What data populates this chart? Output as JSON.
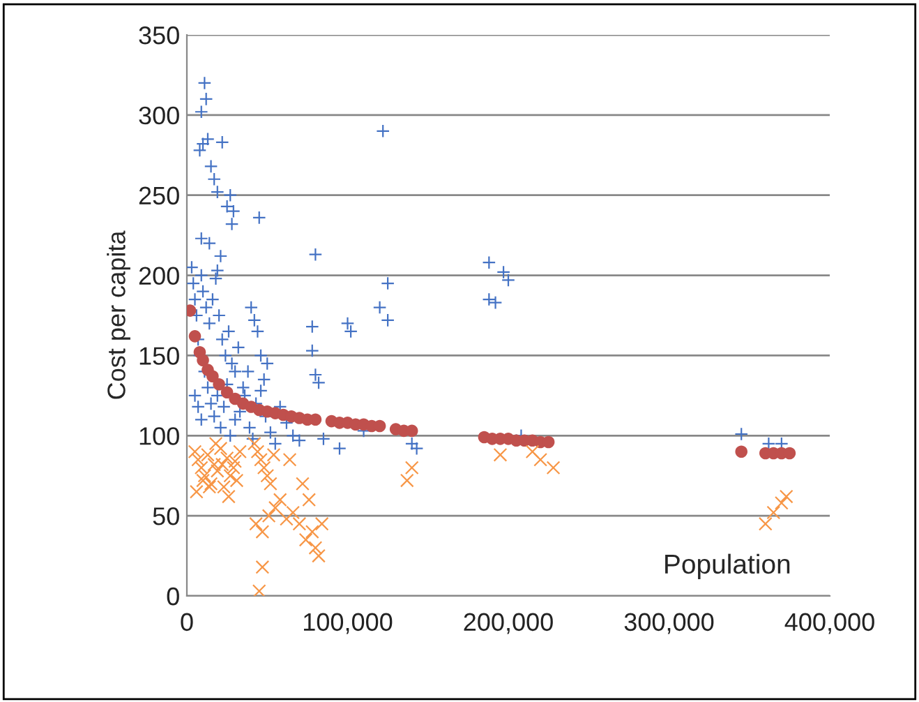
{
  "chart_data": {
    "type": "scatter",
    "xlabel": "Population",
    "ylabel": "Cost per capita",
    "xlim": [
      0,
      400000
    ],
    "ylim": [
      0,
      350
    ],
    "xticks": [
      {
        "value": 0,
        "label": "0"
      },
      {
        "value": 100000,
        "label": "100,000"
      },
      {
        "value": 200000,
        "label": "200,000"
      },
      {
        "value": 300000,
        "label": "300,000"
      },
      {
        "value": 400000,
        "label": "400,000"
      }
    ],
    "yticks": [
      0,
      50,
      100,
      150,
      200,
      250,
      300,
      350
    ],
    "grid": "y",
    "legend": false,
    "series": [
      {
        "color": "#4472c4",
        "marker": "plus",
        "x": [
          11000,
          12000,
          9000,
          13000,
          10000,
          8000,
          22000,
          15000,
          17000,
          19000,
          27000,
          25000,
          29000,
          28000,
          45000,
          9000,
          14000,
          21000,
          19000,
          80000,
          122000,
          125000,
          120000,
          125000,
          188000,
          197000,
          200000,
          192000,
          188000,
          100000,
          102000,
          78000,
          78000,
          80000,
          82000,
          3000,
          4000,
          5000,
          6000,
          7000,
          8000,
          9000,
          10000,
          12000,
          14000,
          16000,
          18000,
          20000,
          22000,
          24000,
          26000,
          28000,
          30000,
          32000,
          35000,
          38000,
          40000,
          42000,
          44000,
          46000,
          48000,
          50000,
          5000,
          7000,
          9000,
          11000,
          13000,
          15000,
          17000,
          19000,
          21000,
          23000,
          25000,
          27000,
          30000,
          33000,
          36000,
          39000,
          41000,
          43000,
          46000,
          49000,
          52000,
          55000,
          58000,
          62000,
          66000,
          70000,
          85000,
          95000,
          110000,
          140000,
          143000,
          205000,
          208000,
          345000,
          362000,
          370000
        ],
        "values": [
          320,
          310,
          302,
          285,
          282,
          278,
          283,
          268,
          260,
          252,
          250,
          243,
          240,
          232,
          236,
          223,
          220,
          212,
          203,
          213,
          290,
          195,
          180,
          172,
          208,
          202,
          197,
          183,
          185,
          170,
          165,
          168,
          153,
          138,
          133,
          205,
          195,
          185,
          175,
          160,
          150,
          200,
          190,
          180,
          170,
          185,
          198,
          175,
          160,
          150,
          165,
          145,
          140,
          155,
          130,
          140,
          180,
          172,
          165,
          150,
          135,
          145,
          125,
          118,
          110,
          140,
          130,
          120,
          112,
          125,
          105,
          118,
          132,
          100,
          110,
          115,
          125,
          105,
          98,
          120,
          128,
          112,
          102,
          95,
          118,
          108,
          100,
          97,
          98,
          92,
          103,
          95,
          92,
          97,
          100,
          101,
          95,
          95
        ]
      },
      {
        "color": "#c0504d",
        "marker": "circle",
        "x": [
          2000,
          5000,
          8000,
          10000,
          13000,
          16000,
          20000,
          25000,
          30000,
          35000,
          40000,
          45000,
          50000,
          55000,
          60000,
          65000,
          70000,
          75000,
          80000,
          90000,
          95000,
          100000,
          105000,
          110000,
          115000,
          120000,
          130000,
          135000,
          140000,
          185000,
          190000,
          195000,
          200000,
          205000,
          210000,
          215000,
          220000,
          225000,
          345000,
          360000,
          365000,
          370000,
          375000
        ],
        "values": [
          178,
          162,
          152,
          147,
          141,
          137,
          132,
          127,
          123,
          120,
          118,
          116,
          115,
          114,
          113,
          112,
          111,
          110,
          110,
          109,
          108,
          108,
          107,
          107,
          106,
          106,
          104,
          103,
          103,
          99,
          98,
          98,
          98,
          97,
          97,
          97,
          96,
          96,
          90,
          89,
          89,
          89,
          89
        ]
      },
      {
        "color": "#f79646",
        "marker": "x",
        "x": [
          5000,
          7000,
          9000,
          11000,
          13000,
          15000,
          17000,
          19000,
          21000,
          23000,
          25000,
          27000,
          29000,
          31000,
          33000,
          6000,
          10000,
          14000,
          18000,
          22000,
          26000,
          30000,
          42000,
          44000,
          46000,
          48000,
          50000,
          52000,
          54000,
          43000,
          47000,
          51000,
          55000,
          58000,
          62000,
          66000,
          70000,
          74000,
          78000,
          80000,
          82000,
          64000,
          72000,
          76000,
          84000,
          47000,
          45000,
          140000,
          137000,
          195000,
          215000,
          220000,
          228000,
          360000,
          365000,
          370000,
          373000
        ],
        "values": [
          90,
          85,
          80,
          75,
          88,
          70,
          82,
          78,
          92,
          68,
          86,
          75,
          80,
          72,
          90,
          65,
          72,
          68,
          95,
          82,
          62,
          84,
          95,
          90,
          85,
          80,
          75,
          70,
          88,
          45,
          40,
          50,
          55,
          60,
          48,
          52,
          45,
          35,
          40,
          30,
          25,
          85,
          70,
          60,
          45,
          18,
          3,
          80,
          72,
          88,
          90,
          85,
          80,
          45,
          52,
          58,
          62
        ]
      }
    ]
  }
}
